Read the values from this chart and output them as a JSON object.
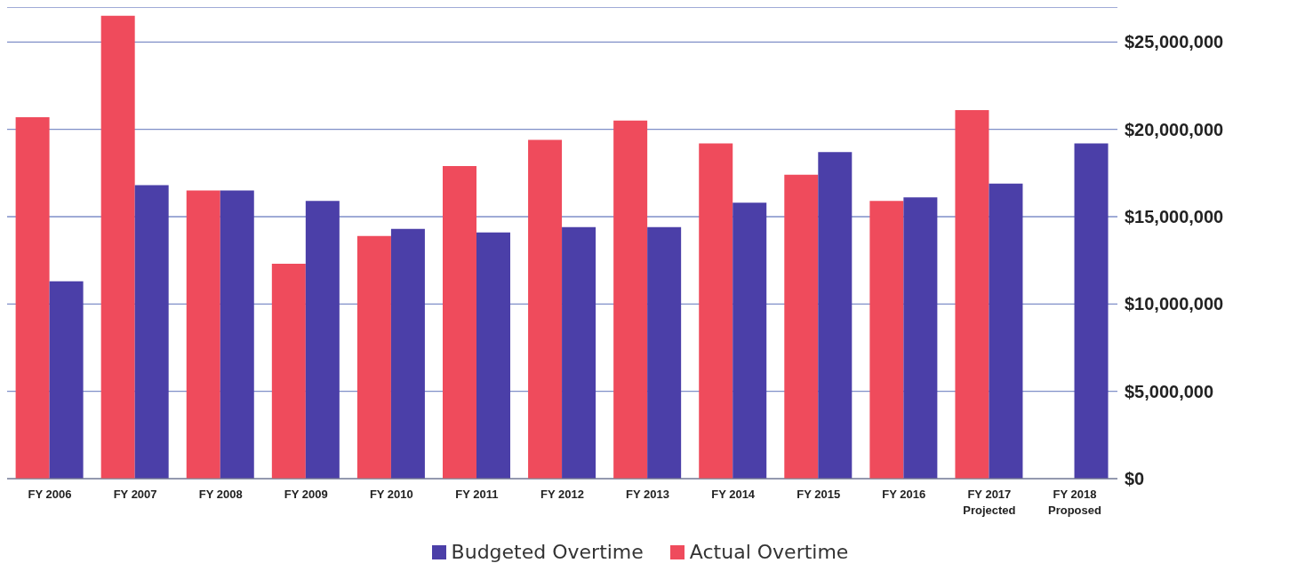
{
  "chart_data": {
    "type": "bar",
    "categories": [
      "FY 2006",
      "FY 2007",
      "FY 2008",
      "FY 2009",
      "FY 2010",
      "FY 2011",
      "FY 2012",
      "FY 2013",
      "FY 2014",
      "FY 2015",
      "FY 2016",
      "FY 2017\nProjected",
      "FY 2018\nProposed"
    ],
    "series": [
      {
        "name": "Budgeted Overtime",
        "color": "#4b3fa8",
        "values": [
          11300000,
          16800000,
          16500000,
          15900000,
          14300000,
          14100000,
          14400000,
          14400000,
          15800000,
          18700000,
          16100000,
          16900000,
          19200000
        ]
      },
      {
        "name": "Actual Overtime",
        "color": "#ef4b5c",
        "values": [
          20700000,
          26500000,
          16500000,
          12300000,
          13900000,
          17900000,
          19400000,
          20500000,
          19200000,
          17400000,
          15900000,
          21100000,
          null
        ]
      }
    ],
    "ylim": [
      0,
      27000000
    ],
    "yticks": [
      {
        "value": 0,
        "label": "$0"
      },
      {
        "value": 5000000,
        "label": "$5,000,000"
      },
      {
        "value": 10000000,
        "label": "$10,000,000"
      },
      {
        "value": 15000000,
        "label": "$15,000,000"
      },
      {
        "value": 20000000,
        "label": "$20,000,000"
      },
      {
        "value": 25000000,
        "label": "$25,000,000"
      }
    ],
    "grid": "y",
    "legend": "bottom"
  }
}
